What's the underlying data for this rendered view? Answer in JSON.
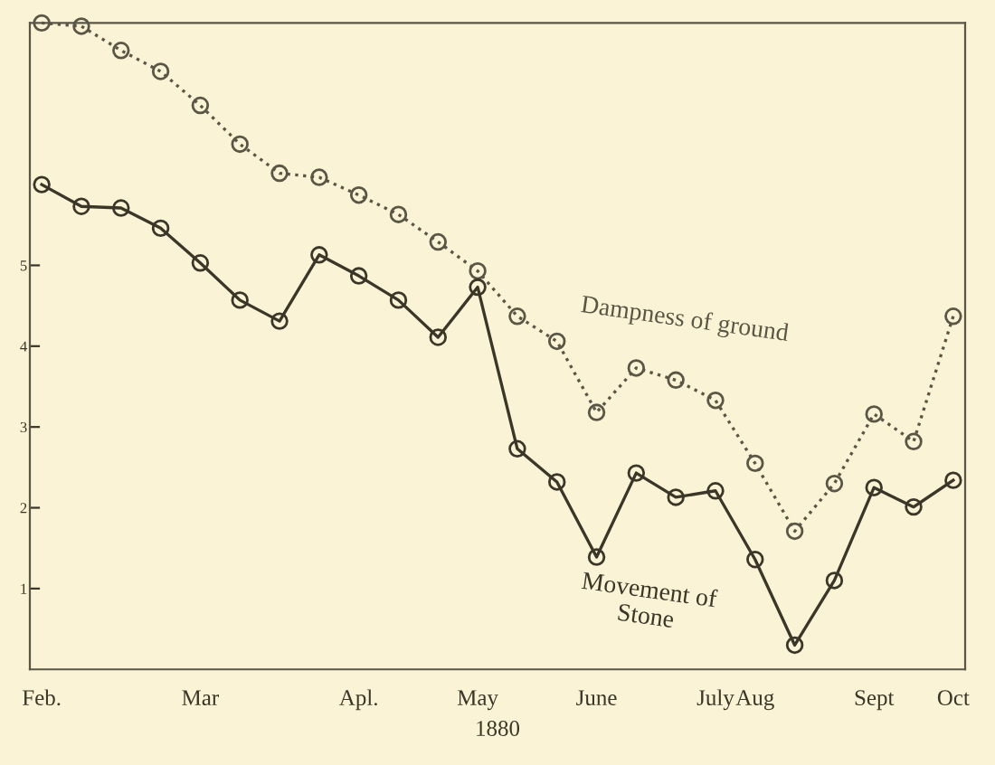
{
  "chart_data": {
    "type": "line",
    "xlabel": "1880",
    "ylim": [
      0,
      8
    ],
    "categories": [
      "Feb.",
      null,
      null,
      null,
      "Mar",
      null,
      null,
      null,
      "Apl.",
      null,
      null,
      "May",
      null,
      null,
      "June",
      null,
      null,
      "July",
      "Aug",
      null,
      null,
      "Sept",
      null,
      "Oct"
    ],
    "yticks": [
      1,
      2,
      3,
      4,
      5
    ],
    "grid": false,
    "legend": false,
    "marker": "circle",
    "series": [
      {
        "name": "Dampness of ground",
        "color": "#5a5646",
        "line_style": "dotted",
        "values": [
          8.0,
          7.96,
          7.66,
          7.4,
          6.98,
          6.5,
          6.14,
          6.09,
          5.87,
          5.63,
          5.29,
          4.93,
          4.37,
          4.06,
          3.18,
          3.73,
          3.58,
          3.33,
          2.55,
          1.71,
          2.3,
          3.16,
          2.82,
          4.37
        ]
      },
      {
        "name": "Movement of\nStone",
        "color": "#3a3628",
        "line_style": "solid",
        "values": [
          6.0,
          5.73,
          5.71,
          5.46,
          5.03,
          4.57,
          4.31,
          5.13,
          4.87,
          4.57,
          4.11,
          4.73,
          2.73,
          2.32,
          1.39,
          2.43,
          2.13,
          2.21,
          1.36,
          0.3,
          1.1,
          2.25,
          2.01,
          2.34
        ]
      }
    ]
  }
}
